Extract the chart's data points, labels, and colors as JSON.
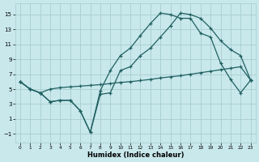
{
  "xlabel": "Humidex (Indice chaleur)",
  "xlim": [
    -0.5,
    23.5
  ],
  "ylim": [
    -2.2,
    16.5
  ],
  "yticks": [
    -1,
    1,
    3,
    5,
    7,
    9,
    11,
    13,
    15
  ],
  "xticks": [
    0,
    1,
    2,
    3,
    4,
    5,
    6,
    7,
    8,
    9,
    10,
    11,
    12,
    13,
    14,
    15,
    16,
    17,
    18,
    19,
    20,
    21,
    22,
    23
  ],
  "bg_color": "#c8e8ec",
  "grid_color": "#a8cdd0",
  "line_color": "#206060",
  "line1_x": [
    0,
    1,
    2,
    3,
    4,
    5,
    6,
    7,
    8,
    9,
    10,
    11,
    12,
    13,
    14,
    15,
    16,
    17,
    18,
    19,
    20,
    21,
    22,
    23
  ],
  "line1_y": [
    6.0,
    5.0,
    4.5,
    5.0,
    5.2,
    5.3,
    5.4,
    5.5,
    5.6,
    5.75,
    5.9,
    6.0,
    6.15,
    6.3,
    6.5,
    6.65,
    6.8,
    7.0,
    7.2,
    7.4,
    7.6,
    7.8,
    8.0,
    6.2
  ],
  "line2_x": [
    0,
    1,
    2,
    3,
    4,
    5,
    6,
    7,
    8,
    9,
    10,
    11,
    12,
    13,
    14,
    15,
    16,
    17,
    18,
    19,
    20,
    21,
    22,
    23
  ],
  "line2_y": [
    6.0,
    5.0,
    4.5,
    3.3,
    3.5,
    3.5,
    2.1,
    -0.8,
    4.3,
    4.5,
    7.5,
    8.0,
    9.5,
    10.5,
    12.0,
    13.5,
    15.2,
    15.0,
    14.5,
    13.2,
    11.5,
    10.3,
    9.5,
    6.2
  ],
  "line3_x": [
    0,
    1,
    2,
    3,
    4,
    5,
    6,
    7,
    8,
    9,
    10,
    11,
    12,
    13,
    14,
    15,
    16,
    17,
    18,
    19,
    20,
    21,
    22,
    23
  ],
  "line3_y": [
    6.0,
    5.0,
    4.5,
    3.3,
    3.5,
    3.5,
    2.1,
    -0.8,
    4.8,
    7.5,
    9.5,
    10.5,
    12.2,
    13.8,
    15.2,
    15.0,
    14.5,
    14.5,
    12.5,
    12.0,
    8.5,
    6.3,
    4.5,
    6.2
  ]
}
